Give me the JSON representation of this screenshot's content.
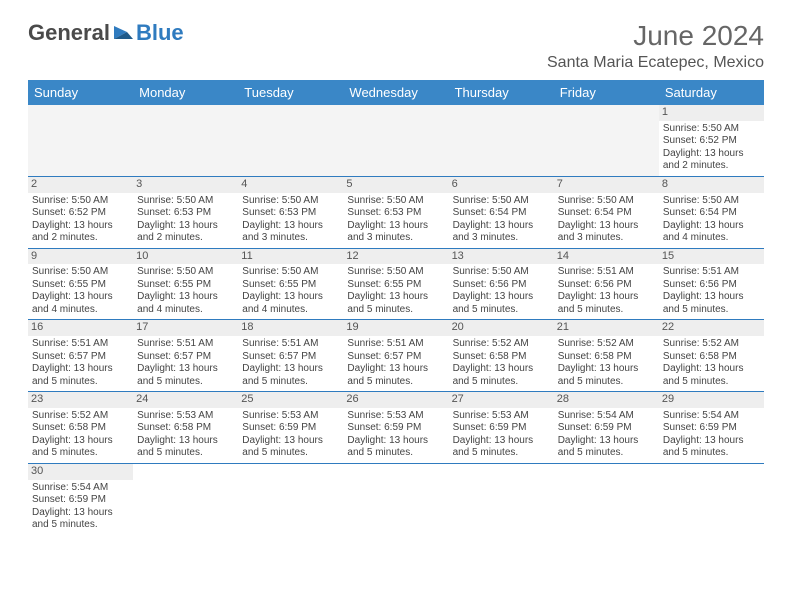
{
  "logo": {
    "text1": "General",
    "text2": "Blue"
  },
  "title": "June 2024",
  "location": "Santa Maria Ecatepec, Mexico",
  "columns": [
    "Sunday",
    "Monday",
    "Tuesday",
    "Wednesday",
    "Thursday",
    "Friday",
    "Saturday"
  ],
  "colors": {
    "header_bg": "#3a87c7",
    "header_text": "#ffffff",
    "border": "#2f7bbf",
    "daynum_bg": "#eeeeee",
    "logo_blue": "#2f7bbf"
  },
  "weeks": [
    [
      null,
      null,
      null,
      null,
      null,
      null,
      {
        "n": "1",
        "sr": "5:50 AM",
        "ss": "6:52 PM",
        "dl": "13 hours and 2 minutes."
      }
    ],
    [
      {
        "n": "2",
        "sr": "5:50 AM",
        "ss": "6:52 PM",
        "dl": "13 hours and 2 minutes."
      },
      {
        "n": "3",
        "sr": "5:50 AM",
        "ss": "6:53 PM",
        "dl": "13 hours and 2 minutes."
      },
      {
        "n": "4",
        "sr": "5:50 AM",
        "ss": "6:53 PM",
        "dl": "13 hours and 3 minutes."
      },
      {
        "n": "5",
        "sr": "5:50 AM",
        "ss": "6:53 PM",
        "dl": "13 hours and 3 minutes."
      },
      {
        "n": "6",
        "sr": "5:50 AM",
        "ss": "6:54 PM",
        "dl": "13 hours and 3 minutes."
      },
      {
        "n": "7",
        "sr": "5:50 AM",
        "ss": "6:54 PM",
        "dl": "13 hours and 3 minutes."
      },
      {
        "n": "8",
        "sr": "5:50 AM",
        "ss": "6:54 PM",
        "dl": "13 hours and 4 minutes."
      }
    ],
    [
      {
        "n": "9",
        "sr": "5:50 AM",
        "ss": "6:55 PM",
        "dl": "13 hours and 4 minutes."
      },
      {
        "n": "10",
        "sr": "5:50 AM",
        "ss": "6:55 PM",
        "dl": "13 hours and 4 minutes."
      },
      {
        "n": "11",
        "sr": "5:50 AM",
        "ss": "6:55 PM",
        "dl": "13 hours and 4 minutes."
      },
      {
        "n": "12",
        "sr": "5:50 AM",
        "ss": "6:55 PM",
        "dl": "13 hours and 5 minutes."
      },
      {
        "n": "13",
        "sr": "5:50 AM",
        "ss": "6:56 PM",
        "dl": "13 hours and 5 minutes."
      },
      {
        "n": "14",
        "sr": "5:51 AM",
        "ss": "6:56 PM",
        "dl": "13 hours and 5 minutes."
      },
      {
        "n": "15",
        "sr": "5:51 AM",
        "ss": "6:56 PM",
        "dl": "13 hours and 5 minutes."
      }
    ],
    [
      {
        "n": "16",
        "sr": "5:51 AM",
        "ss": "6:57 PM",
        "dl": "13 hours and 5 minutes."
      },
      {
        "n": "17",
        "sr": "5:51 AM",
        "ss": "6:57 PM",
        "dl": "13 hours and 5 minutes."
      },
      {
        "n": "18",
        "sr": "5:51 AM",
        "ss": "6:57 PM",
        "dl": "13 hours and 5 minutes."
      },
      {
        "n": "19",
        "sr": "5:51 AM",
        "ss": "6:57 PM",
        "dl": "13 hours and 5 minutes."
      },
      {
        "n": "20",
        "sr": "5:52 AM",
        "ss": "6:58 PM",
        "dl": "13 hours and 5 minutes."
      },
      {
        "n": "21",
        "sr": "5:52 AM",
        "ss": "6:58 PM",
        "dl": "13 hours and 5 minutes."
      },
      {
        "n": "22",
        "sr": "5:52 AM",
        "ss": "6:58 PM",
        "dl": "13 hours and 5 minutes."
      }
    ],
    [
      {
        "n": "23",
        "sr": "5:52 AM",
        "ss": "6:58 PM",
        "dl": "13 hours and 5 minutes."
      },
      {
        "n": "24",
        "sr": "5:53 AM",
        "ss": "6:58 PM",
        "dl": "13 hours and 5 minutes."
      },
      {
        "n": "25",
        "sr": "5:53 AM",
        "ss": "6:59 PM",
        "dl": "13 hours and 5 minutes."
      },
      {
        "n": "26",
        "sr": "5:53 AM",
        "ss": "6:59 PM",
        "dl": "13 hours and 5 minutes."
      },
      {
        "n": "27",
        "sr": "5:53 AM",
        "ss": "6:59 PM",
        "dl": "13 hours and 5 minutes."
      },
      {
        "n": "28",
        "sr": "5:54 AM",
        "ss": "6:59 PM",
        "dl": "13 hours and 5 minutes."
      },
      {
        "n": "29",
        "sr": "5:54 AM",
        "ss": "6:59 PM",
        "dl": "13 hours and 5 minutes."
      }
    ],
    [
      {
        "n": "30",
        "sr": "5:54 AM",
        "ss": "6:59 PM",
        "dl": "13 hours and 5 minutes."
      },
      null,
      null,
      null,
      null,
      null,
      null
    ]
  ],
  "labels": {
    "sunrise": "Sunrise:",
    "sunset": "Sunset:",
    "daylight": "Daylight:"
  }
}
